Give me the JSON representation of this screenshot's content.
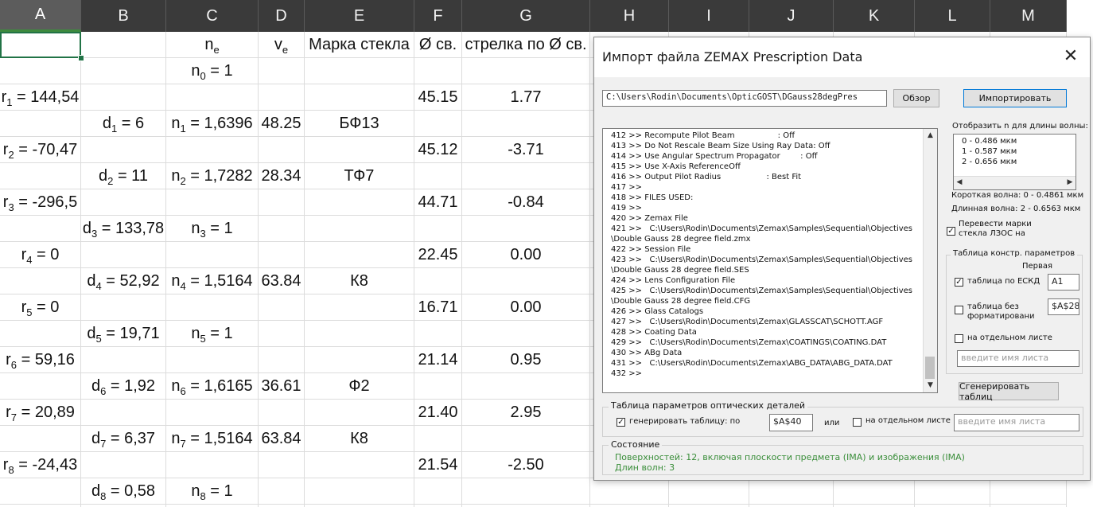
{
  "sheet": {
    "columns": [
      "A",
      "B",
      "C",
      "D",
      "E",
      "F",
      "G",
      "H",
      "I",
      "J",
      "K",
      "L",
      "M"
    ],
    "selected_column": "A",
    "header_row": {
      "c": {
        "main": "n",
        "sub": "e"
      },
      "d": {
        "main": "v",
        "sub": "e"
      },
      "e": "Марка стекла",
      "f": "Ø св.",
      "g": "стрелка по Ø  св."
    },
    "rows": [
      {
        "a": "",
        "b": "",
        "c": {
          "main": "n",
          "sub": "0",
          "rest": " = 1"
        },
        "d": "",
        "e": "",
        "f": "",
        "g": ""
      },
      {
        "a": {
          "main": "r",
          "sub": "1",
          "rest": " = 144,54"
        },
        "b": "",
        "c": "",
        "d": "",
        "e": "",
        "f": "45.15",
        "g": "1.77"
      },
      {
        "a": "",
        "b": {
          "main": "d",
          "sub": "1",
          "rest": " = 6"
        },
        "c": {
          "main": "n",
          "sub": "1",
          "rest": " = 1,6396"
        },
        "d": "48.25",
        "e": "БФ13",
        "f": "",
        "g": ""
      },
      {
        "a": {
          "main": "r",
          "sub": "2",
          "rest": " = -70,47"
        },
        "b": "",
        "c": "",
        "d": "",
        "e": "",
        "f": "45.12",
        "g": "-3.71"
      },
      {
        "a": "",
        "b": {
          "main": "d",
          "sub": "2",
          "rest": " = 11"
        },
        "c": {
          "main": "n",
          "sub": "2",
          "rest": " = 1,7282"
        },
        "d": "28.34",
        "e": "ТФ7",
        "f": "",
        "g": ""
      },
      {
        "a": {
          "main": "r",
          "sub": "3",
          "rest": " = -296,5"
        },
        "b": "",
        "c": "",
        "d": "",
        "e": "",
        "f": "44.71",
        "g": "-0.84"
      },
      {
        "a": "",
        "b": {
          "main": "d",
          "sub": "3",
          "rest": " = 133,78"
        },
        "c": {
          "main": "n",
          "sub": "3",
          "rest": " = 1"
        },
        "d": "",
        "e": "",
        "f": "",
        "g": ""
      },
      {
        "a": {
          "main": "r",
          "sub": "4",
          "rest": " = 0"
        },
        "b": "",
        "c": "",
        "d": "",
        "e": "",
        "f": "22.45",
        "g": "0.00"
      },
      {
        "a": "",
        "b": {
          "main": "d",
          "sub": "4",
          "rest": " = 52,92"
        },
        "c": {
          "main": "n",
          "sub": "4",
          "rest": " = 1,5164"
        },
        "d": "63.84",
        "e": "К8",
        "f": "",
        "g": ""
      },
      {
        "a": {
          "main": "r",
          "sub": "5",
          "rest": " = 0"
        },
        "b": "",
        "c": "",
        "d": "",
        "e": "",
        "f": "16.71",
        "g": "0.00"
      },
      {
        "a": "",
        "b": {
          "main": "d",
          "sub": "5",
          "rest": " = 19,71"
        },
        "c": {
          "main": "n",
          "sub": "5",
          "rest": " = 1"
        },
        "d": "",
        "e": "",
        "f": "",
        "g": ""
      },
      {
        "a": {
          "main": "r",
          "sub": "6",
          "rest": " = 59,16"
        },
        "b": "",
        "c": "",
        "d": "",
        "e": "",
        "f": "21.14",
        "g": "0.95"
      },
      {
        "a": "",
        "b": {
          "main": "d",
          "sub": "6",
          "rest": " = 1,92"
        },
        "c": {
          "main": "n",
          "sub": "6",
          "rest": " = 1,6165"
        },
        "d": "36.61",
        "e": "Ф2",
        "f": "",
        "g": ""
      },
      {
        "a": {
          "main": "r",
          "sub": "7",
          "rest": " = 20,89"
        },
        "b": "",
        "c": "",
        "d": "",
        "e": "",
        "f": "21.40",
        "g": "2.95"
      },
      {
        "a": "",
        "b": {
          "main": "d",
          "sub": "7",
          "rest": " = 6,37"
        },
        "c": {
          "main": "n",
          "sub": "7",
          "rest": " = 1,5164"
        },
        "d": "63.84",
        "e": "К8",
        "f": "",
        "g": ""
      },
      {
        "a": {
          "main": "r",
          "sub": "8",
          "rest": " = -24,43"
        },
        "b": "",
        "c": "",
        "d": "",
        "e": "",
        "f": "21.54",
        "g": "-2.50"
      },
      {
        "a": "",
        "b": {
          "main": "d",
          "sub": "8",
          "rest": " = 0,58"
        },
        "c": {
          "main": "n",
          "sub": "8",
          "rest": " = 1"
        },
        "d": "",
        "e": "",
        "f": "",
        "g": ""
      }
    ]
  },
  "dialog": {
    "title": "Импорт файла ZEMAX Prescription Data",
    "close_glyph": "✕",
    "file_path": "C:\\Users\\Rodin\\Documents\\OpticGOST\\DGauss28degPres",
    "browse_label": "Обзор",
    "import_label": "Импортировать",
    "log_lines": [
      "412 >> Recompute Pilot Beam                 : Off",
      "413 >> Do Not Rescale Beam Size Using Ray Data: Off",
      "414 >> Use Angular Spectrum Propagator        : Off",
      "415 >> Use X-Axis ReferenceOff",
      "416 >> Output Pilot Radius                  : Best Fit",
      "417 >>",
      "418 >> FILES USED:",
      "419 >>",
      "420 >> Zemax File",
      "421 >>   C:\\Users\\Rodin\\Documents\\Zemax\\Samples\\Sequential\\Objectives",
      "\\Double Gauss 28 degree field.zmx",
      "422 >> Session File",
      "423 >>   C:\\Users\\Rodin\\Documents\\Zemax\\Samples\\Sequential\\Objectives",
      "\\Double Gauss 28 degree field.SES",
      "424 >> Lens Configuration File",
      "425 >>   C:\\Users\\Rodin\\Documents\\Zemax\\Samples\\Sequential\\Objectives",
      "\\Double Gauss 28 degree field.CFG",
      "426 >> Glass Catalogs",
      "427 >>   C:\\Users\\Rodin\\Documents\\Zemax\\GLASSCAT\\SCHOTT.AGF",
      "428 >> Coating Data",
      "429 >>   C:\\Users\\Rodin\\Documents\\Zemax\\COATINGS\\COATING.DAT",
      "430 >> ABg Data",
      "431 >>   C:\\Users\\Rodin\\Documents\\Zemax\\ABG_DATA\\ABG_DATA.DAT",
      "432 >>"
    ],
    "wavelength_label": "Отобразить n для длины волны:",
    "wavelengths": [
      "0 - 0.486 мкм",
      "1 - 0.587 мкм",
      "2 - 0.656 мкм"
    ],
    "short_wave": "Короткая волна: 0 - 0.4861 мкм",
    "long_wave": "Длинная волна: 2 - 0.6563 мкм",
    "translate_check": "✓",
    "translate_label": "Перевести марки стекла ЛЗОС на",
    "design_table": {
      "title": "Таблица констр. параметров",
      "first_label": "Первая",
      "eskd_check": "✓",
      "eskd_label": "таблица по ЕСКД",
      "eskd_value": "A1",
      "noformat_label": "таблица без форматировани",
      "noformat_value": "$A$28",
      "separate_label": "на отдельном листе",
      "sheet_placeholder": "введите имя листа"
    },
    "generate_table_label": "Сгенерировать таблиц",
    "optics_table": {
      "title": "Таблица параметров оптических деталей",
      "gen_check": "✓",
      "gen_label": "генерировать таблицу: по",
      "gen_value": "$A$40",
      "or_label": "или",
      "separate_label": "на отдельном листе",
      "sheet_placeholder": "введите имя листа"
    },
    "state": {
      "title": "Состояние",
      "line1": "Поверхностей: 12, включая плоскости предмета (IMA) и изображения (IMA)",
      "line2": "Длин волн: 3"
    },
    "colors": {
      "status_green": "#3a8e3a",
      "selection_green": "#217346"
    }
  }
}
